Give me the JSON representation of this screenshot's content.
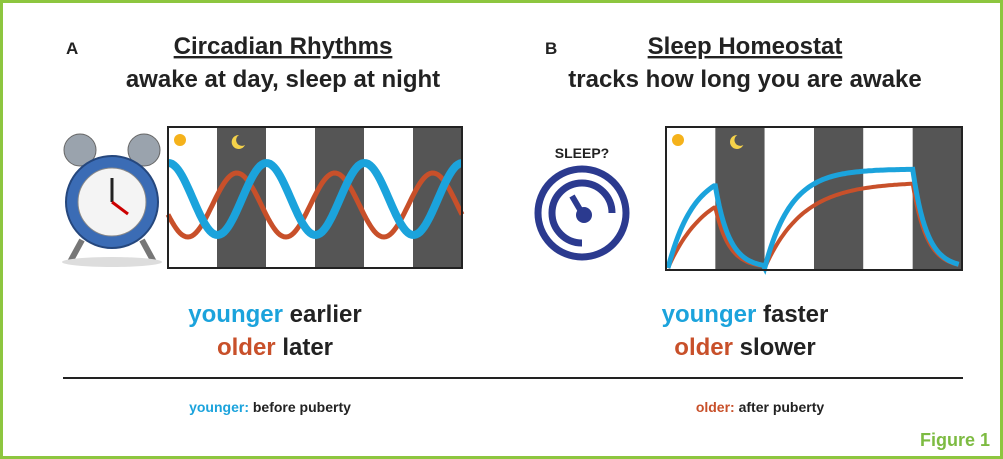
{
  "panel_a": {
    "label": "A",
    "title": "Circadian Rhythms",
    "subtitle": "awake at day, sleep at night",
    "younger_word": "younger",
    "younger_text": "earlier",
    "older_word": "older",
    "older_text": "later"
  },
  "panel_b": {
    "label": "B",
    "title": "Sleep Homeostat",
    "subtitle": "tracks how long you are awake",
    "icon_label": "SLEEP?",
    "younger_word": "younger",
    "younger_text": "faster",
    "older_word": "older",
    "older_text": "slower"
  },
  "key": {
    "younger_word": "younger:",
    "younger_text": "before puberty",
    "older_word": "older:",
    "older_text": "after puberty"
  },
  "figure_label": "Figure 1"
}
